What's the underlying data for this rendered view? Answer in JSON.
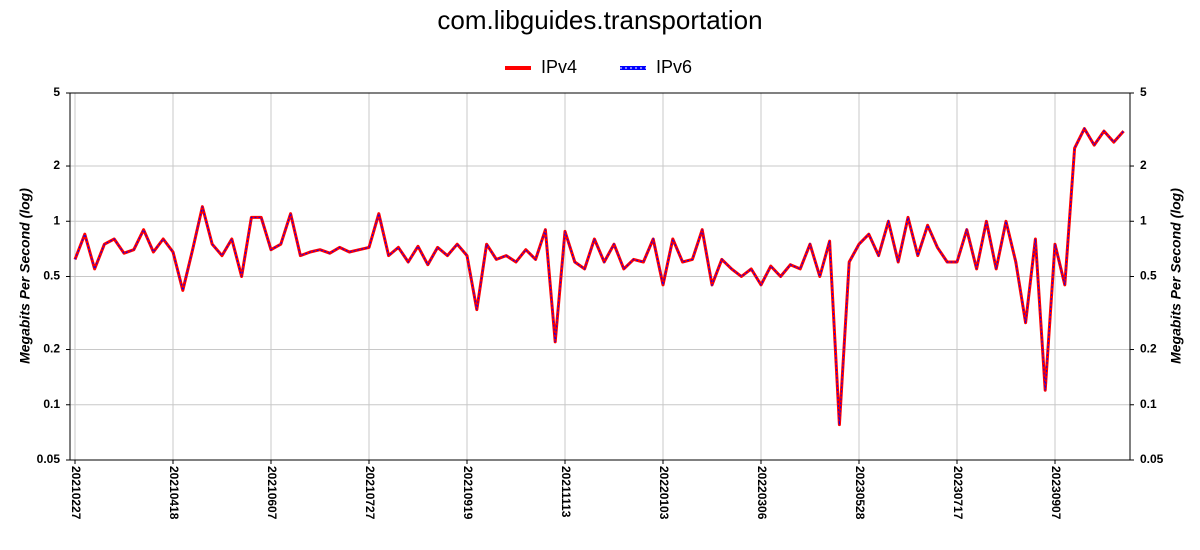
{
  "chart_data": {
    "type": "line",
    "title": "com.libguides.transportation",
    "y_label": "Megabits Per Second (log)",
    "y2_label": "Megabits Per Second (log)",
    "log_scale": true,
    "grid": true,
    "legend": "top",
    "ylim": [
      0.05,
      5
    ],
    "yticks": [
      0.05,
      0.1,
      0.2,
      0.5,
      1,
      2,
      5
    ],
    "y2lim": [
      0.05,
      5
    ],
    "y2ticks": [
      0.05,
      0.1,
      0.2,
      0.5,
      1,
      2,
      5
    ],
    "categories": [
      "20210227",
      null,
      null,
      null,
      null,
      null,
      null,
      null,
      null,
      null,
      "20210418",
      null,
      null,
      null,
      null,
      null,
      null,
      null,
      null,
      null,
      "20210607",
      null,
      null,
      null,
      null,
      null,
      null,
      null,
      null,
      null,
      "20210727",
      null,
      null,
      null,
      null,
      null,
      null,
      null,
      null,
      null,
      "20210919",
      null,
      null,
      null,
      null,
      null,
      null,
      null,
      null,
      null,
      "20211113",
      null,
      null,
      null,
      null,
      null,
      null,
      null,
      null,
      null,
      "20220103",
      null,
      null,
      null,
      null,
      null,
      null,
      null,
      null,
      null,
      "20220306",
      null,
      null,
      null,
      null,
      null,
      null,
      null,
      null,
      null,
      "20230528",
      null,
      null,
      null,
      null,
      null,
      null,
      null,
      null,
      null,
      "20230717",
      null,
      null,
      null,
      null,
      null,
      null,
      null,
      null,
      null,
      "20230907",
      null,
      null,
      null,
      null,
      null,
      null,
      null
    ],
    "series": [
      {
        "name": "IPv4",
        "color": "#ff0000",
        "values": [
          0.62,
          0.85,
          0.55,
          0.75,
          0.8,
          0.67,
          0.7,
          0.9,
          0.68,
          0.8,
          0.68,
          0.42,
          0.7,
          1.2,
          0.75,
          0.65,
          0.8,
          0.5,
          1.05,
          1.05,
          0.7,
          0.75,
          1.1,
          0.65,
          0.68,
          0.7,
          0.67,
          0.72,
          0.68,
          0.7,
          0.72,
          1.1,
          0.65,
          0.72,
          0.6,
          0.73,
          0.58,
          0.72,
          0.65,
          0.75,
          0.65,
          0.33,
          0.75,
          0.62,
          0.65,
          0.6,
          0.7,
          0.62,
          0.9,
          0.22,
          0.88,
          0.6,
          0.55,
          0.8,
          0.6,
          0.75,
          0.55,
          0.62,
          0.6,
          0.8,
          0.45,
          0.8,
          0.6,
          0.62,
          0.9,
          0.45,
          0.62,
          0.55,
          0.5,
          0.55,
          0.45,
          0.57,
          0.5,
          0.58,
          0.55,
          0.75,
          0.5,
          0.78,
          0.078,
          0.6,
          0.75,
          0.85,
          0.65,
          1.0,
          0.6,
          1.05,
          0.65,
          0.95,
          0.72,
          0.6,
          0.6,
          0.9,
          0.55,
          1.0,
          0.55,
          1.0,
          0.6,
          0.28,
          0.8,
          0.12,
          0.75,
          0.45,
          2.5,
          3.2,
          2.6,
          3.1,
          2.7,
          3.1
        ]
      },
      {
        "name": "IPv6",
        "color": "#0000ff",
        "values": [
          0.62,
          0.85,
          0.55,
          0.75,
          0.8,
          0.67,
          0.7,
          0.9,
          0.68,
          0.8,
          0.68,
          0.42,
          0.7,
          1.2,
          0.75,
          0.65,
          0.8,
          0.5,
          1.05,
          1.05,
          0.7,
          0.75,
          1.1,
          0.65,
          0.68,
          0.7,
          0.67,
          0.72,
          0.68,
          0.7,
          0.72,
          1.1,
          0.65,
          0.72,
          0.6,
          0.73,
          0.58,
          0.72,
          0.65,
          0.75,
          0.65,
          0.33,
          0.75,
          0.62,
          0.65,
          0.6,
          0.7,
          0.62,
          0.9,
          0.22,
          0.88,
          0.6,
          0.55,
          0.8,
          0.6,
          0.75,
          0.55,
          0.62,
          0.6,
          0.8,
          0.45,
          0.8,
          0.6,
          0.62,
          0.9,
          0.45,
          0.62,
          0.55,
          0.5,
          0.55,
          0.45,
          0.57,
          0.5,
          0.58,
          0.55,
          0.75,
          0.5,
          0.78,
          0.078,
          0.6,
          0.75,
          0.85,
          0.65,
          1.0,
          0.6,
          1.05,
          0.65,
          0.95,
          0.72,
          0.6,
          0.6,
          0.9,
          0.55,
          1.0,
          0.55,
          1.0,
          0.6,
          0.28,
          0.8,
          0.12,
          0.75,
          0.45,
          2.5,
          3.2,
          2.6,
          3.1,
          2.7,
          3.1
        ]
      }
    ]
  }
}
